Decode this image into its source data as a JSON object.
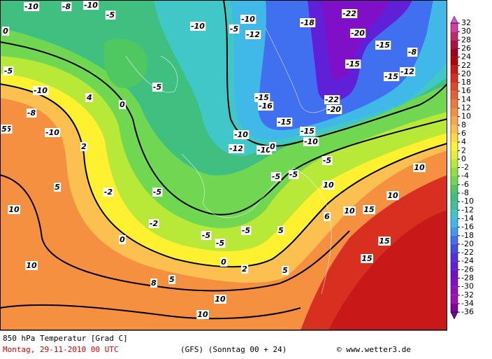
{
  "map": {
    "contour_labels": [
      -10,
      -8,
      -10,
      -5,
      0,
      -5,
      -10,
      -8,
      -5,
      -10,
      0,
      -5,
      -10,
      -5,
      -10,
      -12,
      -18,
      -22,
      -20,
      -15,
      -15,
      -15,
      -12,
      -8,
      -15,
      -16,
      -22,
      -20,
      -15,
      -15,
      -10,
      -10,
      -10,
      -12,
      -5,
      -5,
      -5,
      0,
      0,
      -5,
      -5,
      -5,
      -5,
      0,
      5,
      5,
      5,
      10,
      10,
      15,
      10,
      15,
      15,
      10,
      10,
      10,
      5,
      10,
      10,
      5,
      2,
      4,
      -2,
      -2,
      2,
      8,
      6
    ]
  },
  "colorbar": {
    "ticks": [
      32,
      30,
      28,
      26,
      24,
      22,
      20,
      18,
      16,
      14,
      12,
      10,
      8,
      6,
      4,
      2,
      0,
      -2,
      -4,
      -6,
      -8,
      -10,
      -12,
      -14,
      -16,
      -18,
      -20,
      -22,
      -24,
      -26,
      -28,
      -30,
      -32,
      -34,
      -36
    ],
    "colors": [
      "#d040a0",
      "#c02870",
      "#b01040",
      "#a00020",
      "#b00000",
      "#c81818",
      "#d83020",
      "#e04828",
      "#e86030",
      "#f07838",
      "#f49040",
      "#f8a848",
      "#fcc050",
      "#ffd840",
      "#fff030",
      "#e0f030",
      "#b8e838",
      "#90e040",
      "#70d850",
      "#50c860",
      "#40c080",
      "#40c0a0",
      "#40c8c8",
      "#40b8e8",
      "#4098f0",
      "#4070f0",
      "#4050e8",
      "#5030e0",
      "#6020d8",
      "#7010d0",
      "#8010c8",
      "#9010c0",
      "#a010b0",
      "#8000a0"
    ],
    "over_color": "#e050e0",
    "under_color": "#7000a0"
  },
  "footer": {
    "title": "850 hPa Temperatur [Grad C]",
    "run": "Montag, 29-11-2010  00 UTC",
    "model": "(GFS)  (Sonntag 00 + 24)",
    "credit": "© www.wetter3.de"
  }
}
